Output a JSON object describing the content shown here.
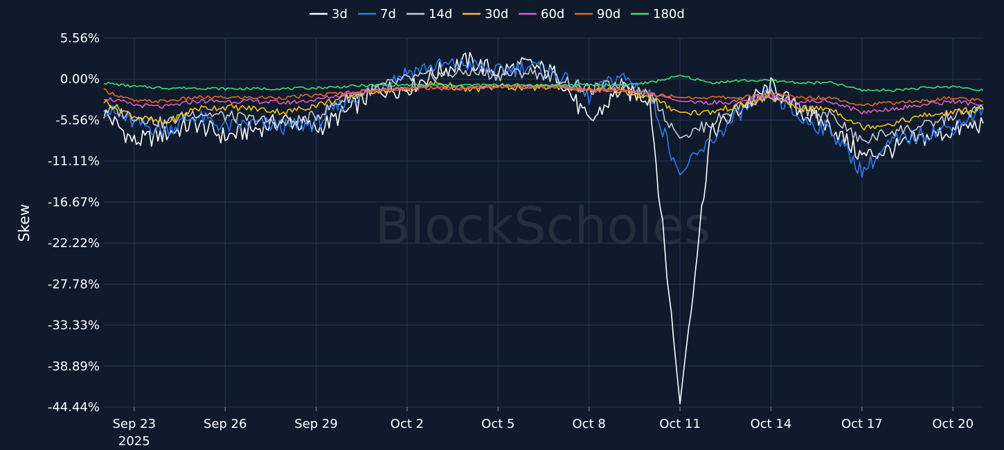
{
  "chart_data": {
    "type": "line",
    "ylabel": "Skew",
    "watermark": "BlockScholes",
    "ylim": [
      -44.44,
      5.56
    ],
    "y_ticks": [
      "5.56%",
      "0.00%",
      "-5.56%",
      "-11.11%",
      "-16.67%",
      "-22.22%",
      "-27.78%",
      "-33.33%",
      "-38.89%",
      "-44.44%"
    ],
    "x_ticks": [
      {
        "label": "Sep 23",
        "sub": "2025",
        "day": 1
      },
      {
        "label": "Sep 26",
        "sub": "",
        "day": 4
      },
      {
        "label": "Sep 29",
        "sub": "",
        "day": 7
      },
      {
        "label": "Oct 2",
        "sub": "",
        "day": 10
      },
      {
        "label": "Oct 5",
        "sub": "",
        "day": 13
      },
      {
        "label": "Oct 8",
        "sub": "",
        "day": 16
      },
      {
        "label": "Oct 11",
        "sub": "",
        "day": 19
      },
      {
        "label": "Oct 14",
        "sub": "",
        "day": 22
      },
      {
        "label": "Oct 17",
        "sub": "",
        "day": 25
      },
      {
        "label": "Oct 20",
        "sub": "",
        "day": 28
      }
    ],
    "x_dates": [
      "Sep 22",
      "Sep 23",
      "Sep 24",
      "Sep 25",
      "Sep 26",
      "Sep 27",
      "Sep 28",
      "Sep 29",
      "Sep 30",
      "Oct 1",
      "Oct 2",
      "Oct 3",
      "Oct 4",
      "Oct 5",
      "Oct 6",
      "Oct 7",
      "Oct 8",
      "Oct 9",
      "Oct 10",
      "Oct 11",
      "Oct 12",
      "Oct 13",
      "Oct 14",
      "Oct 15",
      "Oct 16",
      "Oct 17",
      "Oct 18",
      "Oct 19",
      "Oct 20",
      "Oct 21"
    ],
    "legend_position": "top-center",
    "grid": true,
    "series": [
      {
        "name": "3d",
        "color": "#ffffff",
        "values": [
          -4.5,
          -8.5,
          -7.5,
          -6.0,
          -7.8,
          -6.8,
          -5.5,
          -6.8,
          -4.5,
          -1.5,
          -1.2,
          1.0,
          2.5,
          1.0,
          2.0,
          0.5,
          -6.0,
          -1.5,
          -2.5,
          -44.0,
          -7.5,
          -4.0,
          -1.0,
          -4.5,
          -6.5,
          -10.5,
          -9.5,
          -8.0,
          -7.0,
          -6.0
        ]
      },
      {
        "name": "7d",
        "color": "#2f7bf0",
        "values": [
          -4.0,
          -6.0,
          -7.0,
          -5.0,
          -6.5,
          -6.0,
          -6.5,
          -6.0,
          -3.0,
          -1.0,
          1.0,
          1.8,
          2.0,
          1.0,
          1.8,
          0.5,
          -2.5,
          0.5,
          -2.0,
          -13.0,
          -8.5,
          -4.5,
          -2.0,
          -5.5,
          -7.0,
          -12.5,
          -8.5,
          -7.5,
          -6.5,
          -4.0
        ]
      },
      {
        "name": "14d",
        "color": "#c8cbd2",
        "values": [
          -4.0,
          -5.0,
          -6.0,
          -4.5,
          -5.0,
          -5.5,
          -6.0,
          -5.0,
          -2.5,
          -1.2,
          0.0,
          0.5,
          1.0,
          0.5,
          1.0,
          0.2,
          -1.5,
          -0.5,
          -2.0,
          -8.0,
          -6.0,
          -3.5,
          -2.0,
          -4.0,
          -5.0,
          -8.5,
          -7.0,
          -6.5,
          -5.0,
          -4.0
        ]
      },
      {
        "name": "30d",
        "color": "#f2c320",
        "values": [
          -3.0,
          -5.0,
          -6.0,
          -4.0,
          -3.8,
          -4.0,
          -4.5,
          -3.5,
          -2.5,
          -1.5,
          -1.5,
          -0.5,
          -1.5,
          -1.0,
          -1.2,
          -1.0,
          -1.5,
          -1.5,
          -2.5,
          -4.5,
          -4.5,
          -3.5,
          -2.5,
          -4.0,
          -4.0,
          -6.5,
          -6.0,
          -5.0,
          -4.5,
          -4.0
        ]
      },
      {
        "name": "60d",
        "color": "#e05bc0",
        "values": [
          -2.5,
          -3.5,
          -3.8,
          -3.0,
          -3.0,
          -3.0,
          -3.2,
          -2.8,
          -2.0,
          -1.5,
          -1.2,
          -1.2,
          -1.2,
          -1.0,
          -1.0,
          -1.0,
          -1.5,
          -1.5,
          -2.0,
          -3.0,
          -3.2,
          -3.0,
          -2.5,
          -3.0,
          -3.0,
          -4.5,
          -4.0,
          -3.5,
          -3.0,
          -3.5
        ]
      },
      {
        "name": "90d",
        "color": "#e56a1f",
        "values": [
          -1.5,
          -3.0,
          -3.0,
          -2.5,
          -2.5,
          -2.5,
          -2.5,
          -2.2,
          -1.8,
          -1.5,
          -1.2,
          -1.2,
          -1.2,
          -1.0,
          -1.0,
          -1.0,
          -1.5,
          -1.5,
          -2.0,
          -2.5,
          -2.5,
          -2.5,
          -2.0,
          -2.5,
          -2.5,
          -3.5,
          -3.2,
          -3.0,
          -2.5,
          -3.0
        ]
      },
      {
        "name": "180d",
        "color": "#3fe06a",
        "values": [
          -0.5,
          -1.0,
          -1.2,
          -1.2,
          -1.3,
          -1.3,
          -1.3,
          -1.2,
          -1.0,
          -0.8,
          -0.8,
          -0.8,
          -0.8,
          -0.8,
          -0.8,
          -0.8,
          -0.8,
          -0.8,
          -0.5,
          0.5,
          -0.5,
          -0.2,
          -0.2,
          -0.5,
          -0.5,
          -1.5,
          -1.5,
          -1.2,
          -1.0,
          -1.5
        ]
      }
    ]
  }
}
